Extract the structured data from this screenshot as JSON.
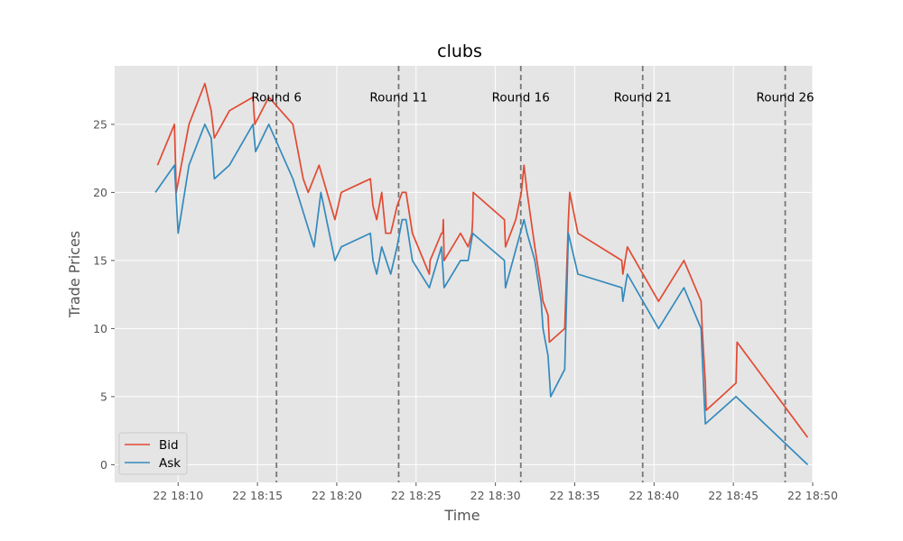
{
  "chart_data": {
    "type": "line",
    "title": "clubs",
    "xlabel": "Time",
    "ylabel": "Trade Prices",
    "x_unit": "minutes",
    "xlim": [
      "22 18:06",
      "22 18:50"
    ],
    "ylim": [
      -1.3,
      29.3
    ],
    "xticks": [
      {
        "t": "22 18:10",
        "label": "22 18:10"
      },
      {
        "t": "22 18:15",
        "label": "22 18:15"
      },
      {
        "t": "22 18:20",
        "label": "22 18:20"
      },
      {
        "t": "22 18:25",
        "label": "22 18:25"
      },
      {
        "t": "22 18:30",
        "label": "22 18:30"
      },
      {
        "t": "22 18:35",
        "label": "22 18:35"
      },
      {
        "t": "22 18:40",
        "label": "22 18:40"
      },
      {
        "t": "22 18:45",
        "label": "22 18:45"
      },
      {
        "t": "22 18:50",
        "label": "22 18:50"
      }
    ],
    "yticks": [
      0,
      5,
      10,
      15,
      20,
      25
    ],
    "grid": true,
    "legend_position": "lower-left",
    "background_color": "#e5e5e5",
    "grid_color": "#ffffff",
    "round_lines": [
      {
        "t": "22 18:16:12",
        "label": "Round 6"
      },
      {
        "t": "22 18:23:54",
        "label": "Round 11"
      },
      {
        "t": "22 18:31:36",
        "label": "Round 16"
      },
      {
        "t": "22 18:39:17",
        "label": "Round 21"
      },
      {
        "t": "22 18:48:16",
        "label": "Round 26"
      }
    ],
    "series": [
      {
        "name": "Bid",
        "color": "#e24a33",
        "points": [
          [
            "22 18:08:42",
            22
          ],
          [
            "22 18:09:46",
            25
          ],
          [
            "22 18:09:53",
            20
          ],
          [
            "22 18:10:12",
            22
          ],
          [
            "22 18:10:41",
            25
          ],
          [
            "22 18:11:41",
            28
          ],
          [
            "22 18:12:05",
            26
          ],
          [
            "22 18:12:17",
            24
          ],
          [
            "22 18:13:14",
            26
          ],
          [
            "22 18:14:43",
            27
          ],
          [
            "22 18:14:50",
            25
          ],
          [
            "22 18:15:43",
            27
          ],
          [
            "22 18:17:14",
            25
          ],
          [
            "22 18:17:53",
            21
          ],
          [
            "22 18:18:12",
            20
          ],
          [
            "22 18:18:53",
            22
          ],
          [
            "22 18:19:53",
            18
          ],
          [
            "22 18:20:17",
            20
          ],
          [
            "22 18:22:07",
            21
          ],
          [
            "22 18:22:17",
            19
          ],
          [
            "22 18:22:31",
            18
          ],
          [
            "22 18:22:50",
            20
          ],
          [
            "22 18:23:05",
            17
          ],
          [
            "22 18:23:24",
            17
          ],
          [
            "22 18:23:48",
            19
          ],
          [
            "22 18:24:07",
            20
          ],
          [
            "22 18:24:22",
            20
          ],
          [
            "22 18:24:46",
            17
          ],
          [
            "22 18:25:50",
            14
          ],
          [
            "22 18:25:53",
            15
          ],
          [
            "22 18:26:36",
            17
          ],
          [
            "22 18:26:41",
            17
          ],
          [
            "22 18:26:43",
            18
          ],
          [
            "22 18:26:46",
            15
          ],
          [
            "22 18:27:48",
            17
          ],
          [
            "22 18:28:17",
            16
          ],
          [
            "22 18:28:31",
            17
          ],
          [
            "22 18:28:34",
            18
          ],
          [
            "22 18:28:36",
            20
          ],
          [
            "22 18:30:34",
            18
          ],
          [
            "22 18:30:38",
            16
          ],
          [
            "22 18:31:17",
            18
          ],
          [
            "22 18:31:38",
            20
          ],
          [
            "22 18:31:48",
            22
          ],
          [
            "22 18:32:00",
            20
          ],
          [
            "22 18:32:29",
            16
          ],
          [
            "22 18:32:53",
            13
          ],
          [
            "22 18:33:00",
            12
          ],
          [
            "22 18:33:19",
            11
          ],
          [
            "22 18:33:24",
            9
          ],
          [
            "22 18:34:22",
            10
          ],
          [
            "22 18:34:36",
            18
          ],
          [
            "22 18:34:41",
            20
          ],
          [
            "22 18:35:12",
            17
          ],
          [
            "22 18:37:58",
            15
          ],
          [
            "22 18:38:02",
            14
          ],
          [
            "22 18:38:19",
            16
          ],
          [
            "22 18:40:17",
            12
          ],
          [
            "22 18:41:53",
            15
          ],
          [
            "22 18:42:58",
            12
          ],
          [
            "22 18:43:02",
            10
          ],
          [
            "22 18:43:14",
            6
          ],
          [
            "22 18:43:17",
            4
          ],
          [
            "22 18:44:14",
            5
          ],
          [
            "22 18:45:10",
            6
          ],
          [
            "22 18:45:14",
            9
          ],
          [
            "22 18:49:41",
            2
          ]
        ]
      },
      {
        "name": "Ask",
        "color": "#348abd",
        "points": [
          [
            "22 18:08:34",
            20
          ],
          [
            "22 18:09:46",
            22
          ],
          [
            "22 18:10:00",
            17
          ],
          [
            "22 18:10:41",
            22
          ],
          [
            "22 18:11:41",
            25
          ],
          [
            "22 18:12:05",
            24
          ],
          [
            "22 18:12:17",
            21
          ],
          [
            "22 18:13:14",
            22
          ],
          [
            "22 18:14:43",
            25
          ],
          [
            "22 18:14:53",
            23
          ],
          [
            "22 18:15:43",
            25
          ],
          [
            "22 18:17:14",
            21
          ],
          [
            "22 18:18:34",
            16
          ],
          [
            "22 18:19:00",
            20
          ],
          [
            "22 18:19:53",
            15
          ],
          [
            "22 18:20:17",
            16
          ],
          [
            "22 18:22:07",
            17
          ],
          [
            "22 18:22:17",
            15
          ],
          [
            "22 18:22:31",
            14
          ],
          [
            "22 18:22:50",
            16
          ],
          [
            "22 18:23:24",
            14
          ],
          [
            "22 18:23:48",
            16
          ],
          [
            "22 18:24:07",
            18
          ],
          [
            "22 18:24:22",
            18
          ],
          [
            "22 18:24:46",
            15
          ],
          [
            "22 18:25:50",
            13
          ],
          [
            "22 18:26:36",
            16
          ],
          [
            "22 18:26:46",
            13
          ],
          [
            "22 18:27:48",
            15
          ],
          [
            "22 18:28:17",
            15
          ],
          [
            "22 18:28:34",
            17
          ],
          [
            "22 18:30:34",
            15
          ],
          [
            "22 18:30:38",
            13
          ],
          [
            "22 18:31:48",
            18
          ],
          [
            "22 18:32:00",
            17
          ],
          [
            "22 18:32:29",
            15
          ],
          [
            "22 18:32:53",
            12
          ],
          [
            "22 18:33:00",
            10
          ],
          [
            "22 18:33:19",
            8
          ],
          [
            "22 18:33:29",
            5
          ],
          [
            "22 18:34:22",
            7
          ],
          [
            "22 18:34:36",
            17
          ],
          [
            "22 18:35:12",
            14
          ],
          [
            "22 18:37:58",
            13
          ],
          [
            "22 18:38:02",
            12
          ],
          [
            "22 18:38:19",
            14
          ],
          [
            "22 18:40:17",
            10
          ],
          [
            "22 18:41:53",
            13
          ],
          [
            "22 18:42:58",
            10
          ],
          [
            "22 18:43:02",
            8
          ],
          [
            "22 18:43:14",
            3
          ],
          [
            "22 18:45:10",
            5
          ],
          [
            "22 18:49:41",
            0
          ]
        ]
      }
    ]
  }
}
